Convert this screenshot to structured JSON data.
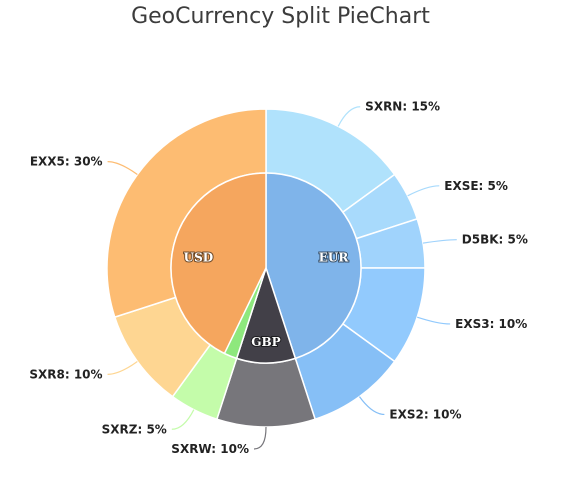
{
  "chart_data": {
    "type": "pie",
    "title": "GeoCurrency Split PieChart",
    "inner": [
      {
        "label": "EUR",
        "value": 45,
        "color": "#7fb4ea"
      },
      {
        "label": "GBP",
        "value": 10,
        "color": "#424048"
      },
      {
        "label": "USD",
        "value": 45,
        "color": "#f5a65e"
      }
    ],
    "outer": [
      {
        "label": "SXRN",
        "value": 15,
        "text": "SXRN: 15%",
        "color": "#b0e2fc"
      },
      {
        "label": "EXSE",
        "value": 5,
        "text": "EXSE: 5%",
        "color": "#a8dafc"
      },
      {
        "label": "D5BK",
        "value": 5,
        "text": "D5BK: 5%",
        "color": "#a0d3fc"
      },
      {
        "label": "EXS3",
        "value": 10,
        "text": "EXS3: 10%",
        "color": "#92cafd"
      },
      {
        "label": "EXS2",
        "value": 10,
        "text": "EXS2: 10%",
        "color": "#86bff6"
      },
      {
        "label": "SXRW",
        "value": 10,
        "text": "SXRW: 10%",
        "color": "#77767b"
      },
      {
        "label": "SXRZ",
        "value": 5,
        "text": "SXRZ: 5%",
        "color": "#c4fcaa"
      },
      {
        "label": "SXR8",
        "value": 10,
        "text": "SXR8: 10%",
        "color": "#fed692"
      },
      {
        "label": "EXX5",
        "value": 30,
        "text": "EXX5: 30%",
        "color": "#fdbc72"
      }
    ],
    "inner_highlight": [
      {
        "label": "USD-green",
        "value": 5,
        "color": "#8ee87d"
      }
    ]
  }
}
